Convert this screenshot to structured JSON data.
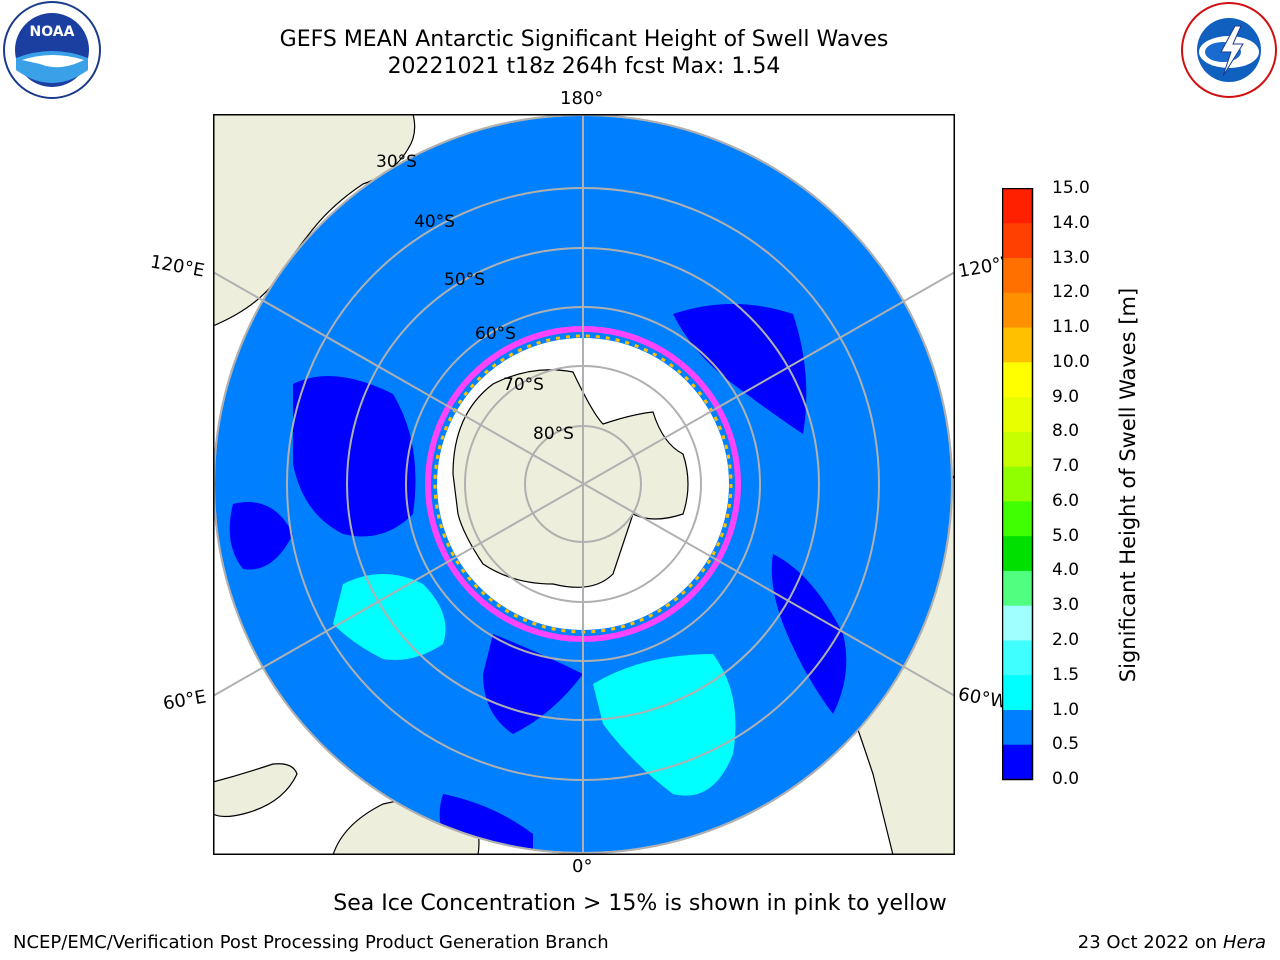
{
  "title_line1": "GEFS MEAN Antarctic Significant Height of Swell Waves",
  "title_line2": "20221021 t18z 264h fcst   Max: 1.54",
  "longitude_labels": {
    "top": "180°",
    "bottom": "0°",
    "left_upper": "120°E",
    "right_upper": "120°W",
    "left_lower": "60°E",
    "right_lower": "60°W"
  },
  "latitude_labels": [
    "30°S",
    "40°S",
    "50°S",
    "60°S",
    "70°S",
    "80°S"
  ],
  "colorbar": {
    "label": "Significant Height of Swell Waves [m]",
    "ticks": [
      "0.0",
      "0.5",
      "1.0",
      "1.5",
      "2.0",
      "3.0",
      "4.0",
      "5.0",
      "6.0",
      "7.0",
      "8.0",
      "9.0",
      "10.0",
      "11.0",
      "12.0",
      "13.0",
      "14.0",
      "15.0"
    ],
    "colors": [
      "#0000ff",
      "#0080ff",
      "#00ffff",
      "#40ffff",
      "#a0ffff",
      "#50ff80",
      "#00e000",
      "#40ff00",
      "#90ff00",
      "#c8ff00",
      "#e8ff00",
      "#ffff00",
      "#ffc000",
      "#ff9000",
      "#ff7000",
      "#ff4000",
      "#ff2000"
    ]
  },
  "colors": {
    "ocean_swell_0_5_to_1_0": "#0080ff",
    "ocean_swell_0_0_to_0_5": "#0000ff",
    "ocean_swell_1_0_to_1_5": "#00ffff",
    "sea_ice_edge": "#ff44ff",
    "sea_ice_yellow": "#ffc000",
    "land": "#eeeedd",
    "grid": "#b0b0b0"
  },
  "logos": {
    "left": "NOAA",
    "right": "NATIONAL WEATHER SERVICE"
  },
  "footer": {
    "note": "Sea Ice Concentration > 15% is shown in pink to yellow",
    "credit": "NCEP/EMC/Verification Post Processing Product Generation Branch",
    "date": "23 Oct 2022 on",
    "machine": "Hera"
  }
}
